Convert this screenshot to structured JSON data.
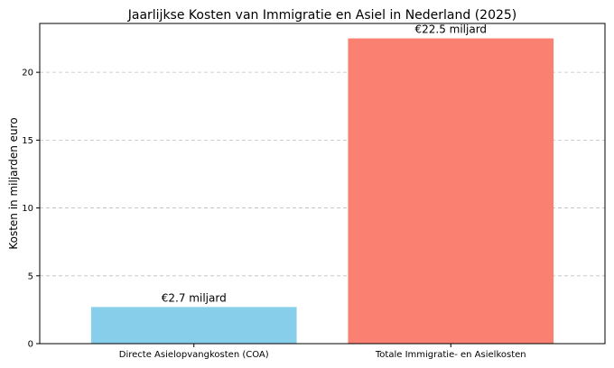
{
  "chart_data": {
    "type": "bar",
    "title": "Jaarlijkse Kosten van Immigratie en Asiel in Nederland (2025)",
    "xlabel": "",
    "ylabel": "Kosten in miljarden euro",
    "categories": [
      "Directe Asielopvangkosten (COA)",
      "Totale Immigratie- en Asielkosten"
    ],
    "values": [
      2.7,
      22.5
    ],
    "data_labels": [
      "€2.7 miljard",
      "€22.5 miljard"
    ],
    "colors": [
      "#87ceeb",
      "#fa8072"
    ],
    "ylim": [
      0,
      23.6
    ],
    "yticks": [
      0,
      5,
      10,
      15,
      20
    ],
    "grid": "y-dashed",
    "legend": "none"
  }
}
